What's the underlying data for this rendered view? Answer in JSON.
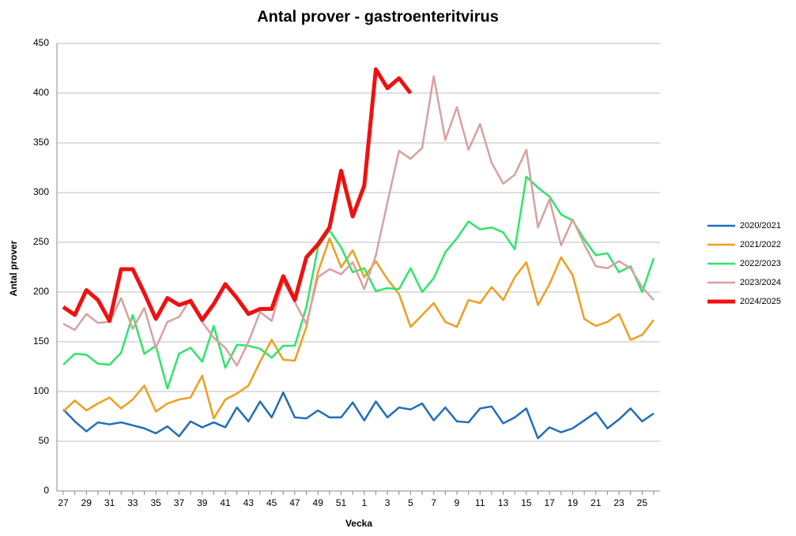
{
  "chart_data": {
    "type": "line",
    "title": "Antal prover - gastroenteritvirus",
    "x_label": "Vecka",
    "y_label": "Antal prover",
    "categories": [
      "27",
      null,
      "29",
      null,
      "31",
      null,
      "33",
      null,
      "35",
      null,
      "37",
      null,
      "39",
      null,
      "41",
      null,
      "43",
      null,
      "45",
      null,
      "47",
      null,
      "49",
      null,
      "51",
      null,
      "1",
      null,
      "3",
      null,
      "5",
      null,
      "7",
      null,
      "9",
      null,
      "11",
      null,
      "13",
      null,
      "15",
      null,
      "17",
      null,
      "19",
      null,
      "21",
      null,
      "23",
      null,
      "25",
      null
    ],
    "ylim": [
      0,
      450
    ],
    "yticks": [
      0,
      50,
      100,
      150,
      200,
      250,
      300,
      350,
      400,
      450
    ],
    "grid": true,
    "legend": "right",
    "series": [
      {
        "name": "2020/2021",
        "color": "#1f6fb8",
        "width": 2.5,
        "values": [
          82,
          70,
          60,
          69,
          67,
          69,
          66,
          63,
          58,
          65,
          55,
          70,
          64,
          69,
          64,
          84,
          70,
          90,
          74,
          99,
          74,
          73,
          81,
          74,
          74,
          89,
          71,
          90,
          74,
          84,
          82,
          88,
          71,
          84,
          70,
          69,
          83,
          85,
          68,
          74,
          83,
          53,
          64,
          59,
          63,
          71,
          79,
          63,
          72,
          83,
          70,
          78
        ]
      },
      {
        "name": "2021/2022",
        "color": "#f29d1f",
        "width": 2.5,
        "values": [
          80,
          91,
          81,
          88,
          94,
          83,
          92,
          106,
          80,
          88,
          92,
          94,
          116,
          73,
          92,
          98,
          106,
          130,
          152,
          132,
          131,
          165,
          220,
          254,
          225,
          242,
          215,
          231,
          213,
          198,
          165,
          177,
          189,
          170,
          165,
          192,
          189,
          205,
          192,
          215,
          230,
          187,
          208,
          235,
          217,
          173,
          166,
          170,
          178,
          152,
          157,
          172
        ]
      },
      {
        "name": "2022/2023",
        "color": "#2ee56a",
        "width": 2.5,
        "values": [
          127,
          138,
          137,
          128,
          127,
          139,
          177,
          138,
          146,
          103,
          138,
          144,
          130,
          166,
          124,
          147,
          146,
          143,
          134,
          146,
          146,
          185,
          245,
          262,
          245,
          220,
          224,
          201,
          204,
          203,
          224,
          200,
          214,
          240,
          254,
          271,
          263,
          265,
          260,
          243,
          316,
          305,
          296,
          278,
          272,
          253,
          237,
          239,
          220,
          226,
          200,
          234
        ]
      },
      {
        "name": "2023/2024",
        "color": "#d9a0a0",
        "width": 2.5,
        "values": [
          168,
          162,
          178,
          169,
          170,
          194,
          163,
          184,
          144,
          170,
          175,
          193,
          170,
          154,
          144,
          126,
          150,
          180,
          171,
          211,
          190,
          168,
          215,
          223,
          218,
          230,
          203,
          237,
          290,
          342,
          334,
          345,
          417,
          353,
          386,
          343,
          369,
          330,
          309,
          318,
          343,
          265,
          293,
          247,
          273,
          248,
          226,
          224,
          231,
          224,
          205,
          192
        ]
      },
      {
        "name": "2024/2025",
        "color": "#f01010",
        "width": 5,
        "values": [
          185,
          177,
          202,
          192,
          171,
          223,
          223,
          199,
          173,
          194,
          187,
          191,
          172,
          188,
          208,
          194,
          178,
          183,
          183,
          216,
          192,
          235,
          248,
          265,
          322,
          276,
          307,
          424,
          405,
          415,
          400,
          null,
          null,
          null,
          null,
          null,
          null,
          null,
          null,
          null,
          null,
          null,
          null,
          null,
          null,
          null,
          null,
          null,
          null,
          null,
          null,
          null
        ]
      }
    ]
  }
}
